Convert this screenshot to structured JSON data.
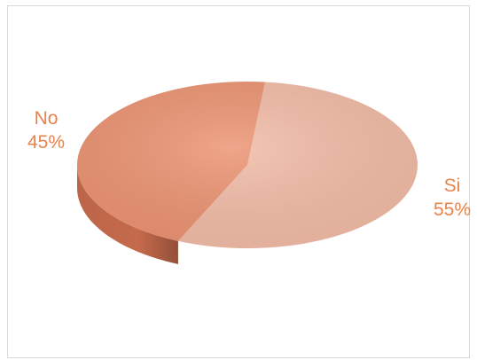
{
  "chart_data": {
    "type": "pie",
    "title": "",
    "slices": [
      {
        "label": "Si",
        "value": 55,
        "percent_label": "55%",
        "color": "#F2BCA6",
        "side_color": "#C99482",
        "label_color": "#E8834A"
      },
      {
        "label": "No",
        "value": 45,
        "percent_label": "45%",
        "color": "#EC9270",
        "side_color": "#C56A4C",
        "label_color": "#E8834A"
      }
    ]
  }
}
